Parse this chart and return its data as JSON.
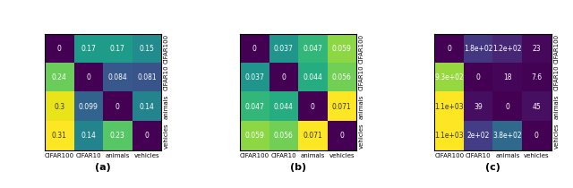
{
  "panels": [
    {
      "label": "(a)",
      "data": [
        [
          0,
          0.17,
          0.17,
          0.15
        ],
        [
          0.24,
          0,
          0.084,
          0.081
        ],
        [
          0.3,
          0.099,
          0,
          0.14
        ],
        [
          0.31,
          0.14,
          0.23,
          0
        ]
      ],
      "text_data": [
        [
          "0",
          "0.17",
          "0.17",
          "0.15"
        ],
        [
          "0.24",
          "0",
          "0.084",
          "0.081"
        ],
        [
          "0.3",
          "0.099",
          "0",
          "0.14"
        ],
        [
          "0.31",
          "0.14",
          "0.23",
          "0"
        ]
      ],
      "cmap": "viridis",
      "vmin": 0,
      "vmax": 0.31
    },
    {
      "label": "(b)",
      "data": [
        [
          0,
          0.037,
          0.047,
          0.059
        ],
        [
          0.037,
          0,
          0.044,
          0.056
        ],
        [
          0.047,
          0.044,
          0,
          0.071
        ],
        [
          0.059,
          0.056,
          0.071,
          0
        ]
      ],
      "text_data": [
        [
          "0",
          "0.037",
          "0.047",
          "0.059"
        ],
        [
          "0.037",
          "0",
          "0.044",
          "0.056"
        ],
        [
          "0.047",
          "0.044",
          "0",
          "0.071"
        ],
        [
          "0.059",
          "0.056",
          "0.071",
          "0"
        ]
      ],
      "cmap": "viridis",
      "vmin": 0,
      "vmax": 0.071
    },
    {
      "label": "(c)",
      "data": [
        [
          0,
          180,
          120,
          23
        ],
        [
          930,
          0,
          18,
          7.6
        ],
        [
          1100,
          39,
          0,
          45
        ],
        [
          1100,
          200,
          380,
          0
        ]
      ],
      "text_data": [
        [
          "0",
          "1.8e+02",
          "1.2e+02",
          "23"
        ],
        [
          "9.3e+02",
          "0",
          "18",
          "7.6"
        ],
        [
          "1.1e+03",
          "39",
          "0",
          "45"
        ],
        [
          "1.1e+03",
          "2e+02",
          "3.8e+02",
          "0"
        ]
      ],
      "cmap": "viridis",
      "vmin": 0,
      "vmax": 1100
    }
  ],
  "tick_labels": [
    "CIFAR100",
    "CIFAR10",
    "animals",
    "vehicles"
  ],
  "tick_fontsize": 5.0,
  "cell_fontsize": 5.5,
  "label_fontsize": 8,
  "text_thresh": [
    0.65,
    0.65,
    0.65
  ]
}
